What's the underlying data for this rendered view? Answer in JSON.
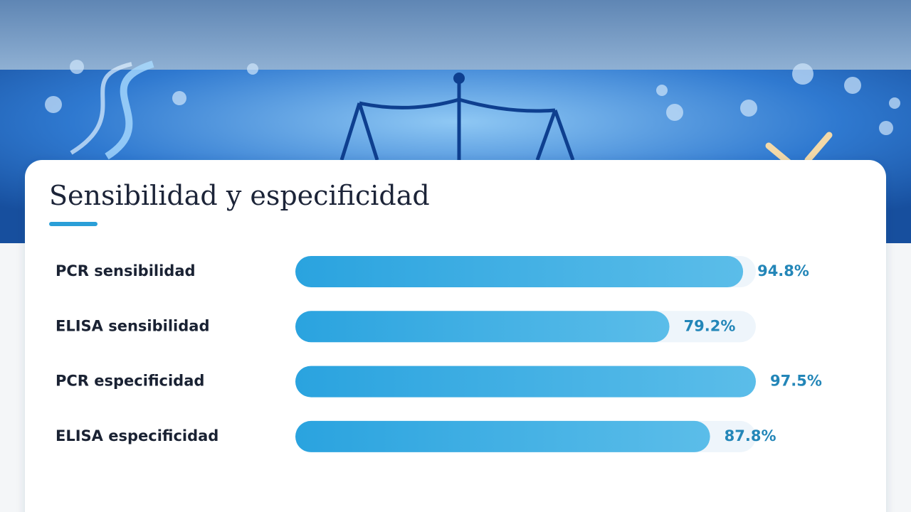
{
  "chart_data": {
    "type": "bar",
    "orientation": "horizontal",
    "title": "Sensibilidad y especificidad",
    "categories": [
      "PCR sensibilidad",
      "ELISA sensibilidad",
      "PCR especificidad",
      "ELISA especificidad"
    ],
    "values": [
      94.8,
      79.2,
      97.5,
      87.8
    ],
    "value_labels": [
      "94.8%",
      "79.2%",
      "97.5%",
      "87.8%"
    ],
    "color": "#2aa3df"
  }
}
